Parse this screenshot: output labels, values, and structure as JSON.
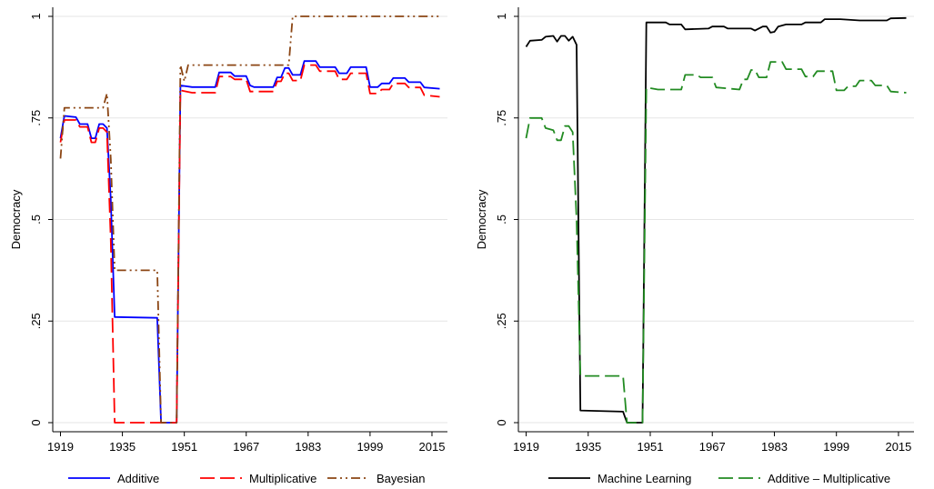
{
  "chart_data": [
    {
      "type": "line",
      "ylabel": "Democracy",
      "xlim": [
        1917,
        2019
      ],
      "ylim": [
        0,
        1
      ],
      "xticks": [
        "1919",
        "1935",
        "1951",
        "1967",
        "1983",
        "1999",
        "2015"
      ],
      "yticks": [
        "0",
        ".25",
        ".5",
        ".75",
        "1"
      ],
      "grid": true,
      "legend_position": "bottom",
      "series": [
        {
          "name": "Additive",
          "color": "#0000ff",
          "dash": "solid",
          "points": [
            [
              1919,
              0.7
            ],
            [
              1920,
              0.755
            ],
            [
              1923,
              0.752
            ],
            [
              1924,
              0.735
            ],
            [
              1926,
              0.735
            ],
            [
              1927,
              0.7
            ],
            [
              1928,
              0.7
            ],
            [
              1929,
              0.735
            ],
            [
              1930,
              0.735
            ],
            [
              1931,
              0.725
            ],
            [
              1932,
              0.55
            ],
            [
              1933,
              0.26
            ],
            [
              1944,
              0.258
            ],
            [
              1945,
              0.0
            ],
            [
              1949,
              0.0
            ],
            [
              1950,
              0.83
            ],
            [
              1953,
              0.826
            ],
            [
              1959,
              0.826
            ],
            [
              1960,
              0.862
            ],
            [
              1963,
              0.862
            ],
            [
              1964,
              0.853
            ],
            [
              1967,
              0.853
            ],
            [
              1968,
              0.83
            ],
            [
              1969,
              0.826
            ],
            [
              1974,
              0.826
            ],
            [
              1975,
              0.85
            ],
            [
              1976,
              0.85
            ],
            [
              1977,
              0.873
            ],
            [
              1978,
              0.873
            ],
            [
              1979,
              0.856
            ],
            [
              1981,
              0.856
            ],
            [
              1982,
              0.89
            ],
            [
              1985,
              0.89
            ],
            [
              1986,
              0.875
            ],
            [
              1990,
              0.875
            ],
            [
              1991,
              0.86
            ],
            [
              1993,
              0.86
            ],
            [
              1994,
              0.875
            ],
            [
              1998,
              0.875
            ],
            [
              1999,
              0.826
            ],
            [
              2001,
              0.826
            ],
            [
              2002,
              0.835
            ],
            [
              2004,
              0.835
            ],
            [
              2005,
              0.848
            ],
            [
              2008,
              0.848
            ],
            [
              2009,
              0.838
            ],
            [
              2012,
              0.838
            ],
            [
              2013,
              0.825
            ],
            [
              2017,
              0.822
            ]
          ]
        },
        {
          "name": "Multiplicative",
          "color": "#ff0000",
          "dash": "long-dash",
          "points": [
            [
              1919,
              0.69
            ],
            [
              1920,
              0.745
            ],
            [
              1923,
              0.745
            ],
            [
              1924,
              0.728
            ],
            [
              1926,
              0.728
            ],
            [
              1927,
              0.69
            ],
            [
              1928,
              0.69
            ],
            [
              1929,
              0.725
            ],
            [
              1930,
              0.725
            ],
            [
              1931,
              0.715
            ],
            [
              1932,
              0.45
            ],
            [
              1933,
              0.0
            ],
            [
              1944,
              0.0
            ],
            [
              1949,
              0.0
            ],
            [
              1950,
              0.818
            ],
            [
              1953,
              0.812
            ],
            [
              1959,
              0.812
            ],
            [
              1960,
              0.852
            ],
            [
              1963,
              0.852
            ],
            [
              1964,
              0.845
            ],
            [
              1967,
              0.845
            ],
            [
              1968,
              0.815
            ],
            [
              1974,
              0.815
            ],
            [
              1975,
              0.84
            ],
            [
              1976,
              0.84
            ],
            [
              1977,
              0.86
            ],
            [
              1978,
              0.86
            ],
            [
              1979,
              0.842
            ],
            [
              1981,
              0.842
            ],
            [
              1982,
              0.88
            ],
            [
              1985,
              0.88
            ],
            [
              1986,
              0.865
            ],
            [
              1990,
              0.865
            ],
            [
              1991,
              0.845
            ],
            [
              1993,
              0.845
            ],
            [
              1994,
              0.86
            ],
            [
              1998,
              0.86
            ],
            [
              1999,
              0.81
            ],
            [
              2001,
              0.81
            ],
            [
              2002,
              0.82
            ],
            [
              2004,
              0.82
            ],
            [
              2005,
              0.835
            ],
            [
              2008,
              0.835
            ],
            [
              2009,
              0.825
            ],
            [
              2012,
              0.825
            ],
            [
              2013,
              0.806
            ],
            [
              2017,
              0.802
            ]
          ]
        },
        {
          "name": "Bayesian",
          "color": "#8b4513",
          "dash": "dash-dot-dot",
          "points": [
            [
              1919,
              0.65
            ],
            [
              1920,
              0.775
            ],
            [
              1930,
              0.775
            ],
            [
              1931,
              0.81
            ],
            [
              1932,
              0.65
            ],
            [
              1933,
              0.375
            ],
            [
              1944,
              0.375
            ],
            [
              1945,
              0.0
            ],
            [
              1949,
              0.0
            ],
            [
              1950,
              0.88
            ],
            [
              1951,
              0.84
            ],
            [
              1952,
              0.88
            ],
            [
              1978,
              0.88
            ],
            [
              1979,
              1.0
            ],
            [
              2017,
              1.0
            ]
          ]
        }
      ]
    },
    {
      "type": "line",
      "ylabel": "Democracy",
      "xlim": [
        1917,
        2019
      ],
      "ylim": [
        0,
        1
      ],
      "xticks": [
        "1919",
        "1935",
        "1951",
        "1967",
        "1983",
        "1999",
        "2015"
      ],
      "yticks": [
        "0",
        ".25",
        ".5",
        ".75",
        "1"
      ],
      "grid": true,
      "legend_position": "bottom",
      "series": [
        {
          "name": "Machine Learning",
          "color": "#000000",
          "dash": "solid",
          "points": [
            [
              1919,
              0.925
            ],
            [
              1920,
              0.94
            ],
            [
              1923,
              0.942
            ],
            [
              1924,
              0.95
            ],
            [
              1926,
              0.952
            ],
            [
              1927,
              0.938
            ],
            [
              1928,
              0.952
            ],
            [
              1929,
              0.952
            ],
            [
              1930,
              0.94
            ],
            [
              1931,
              0.95
            ],
            [
              1932,
              0.93
            ],
            [
              1933,
              0.03
            ],
            [
              1944,
              0.027
            ],
            [
              1945,
              0.0
            ],
            [
              1949,
              0.0
            ],
            [
              1950,
              0.985
            ],
            [
              1955,
              0.985
            ],
            [
              1956,
              0.98
            ],
            [
              1959,
              0.98
            ],
            [
              1960,
              0.968
            ],
            [
              1966,
              0.97
            ],
            [
              1967,
              0.975
            ],
            [
              1970,
              0.975
            ],
            [
              1971,
              0.97
            ],
            [
              1977,
              0.97
            ],
            [
              1978,
              0.965
            ],
            [
              1980,
              0.975
            ],
            [
              1981,
              0.975
            ],
            [
              1982,
              0.96
            ],
            [
              1983,
              0.962
            ],
            [
              1984,
              0.975
            ],
            [
              1986,
              0.98
            ],
            [
              1990,
              0.98
            ],
            [
              1991,
              0.985
            ],
            [
              1995,
              0.985
            ],
            [
              1996,
              0.993
            ],
            [
              2000,
              0.993
            ],
            [
              2005,
              0.99
            ],
            [
              2012,
              0.99
            ],
            [
              2013,
              0.995
            ],
            [
              2017,
              0.996
            ]
          ]
        },
        {
          "name": "Additive – Multiplicative",
          "color": "#228b22",
          "dash": "long-dash",
          "points": [
            [
              1919,
              0.7
            ],
            [
              1920,
              0.75
            ],
            [
              1923,
              0.75
            ],
            [
              1924,
              0.725
            ],
            [
              1926,
              0.72
            ],
            [
              1927,
              0.695
            ],
            [
              1928,
              0.695
            ],
            [
              1929,
              0.73
            ],
            [
              1930,
              0.73
            ],
            [
              1931,
              0.715
            ],
            [
              1932,
              0.5
            ],
            [
              1933,
              0.115
            ],
            [
              1944,
              0.115
            ],
            [
              1945,
              0.0
            ],
            [
              1949,
              0.0
            ],
            [
              1950,
              0.825
            ],
            [
              1953,
              0.82
            ],
            [
              1959,
              0.82
            ],
            [
              1960,
              0.856
            ],
            [
              1963,
              0.856
            ],
            [
              1964,
              0.85
            ],
            [
              1967,
              0.85
            ],
            [
              1968,
              0.825
            ],
            [
              1974,
              0.82
            ],
            [
              1975,
              0.845
            ],
            [
              1976,
              0.845
            ],
            [
              1977,
              0.868
            ],
            [
              1978,
              0.868
            ],
            [
              1979,
              0.85
            ],
            [
              1981,
              0.85
            ],
            [
              1982,
              0.888
            ],
            [
              1985,
              0.888
            ],
            [
              1986,
              0.87
            ],
            [
              1990,
              0.87
            ],
            [
              1991,
              0.852
            ],
            [
              1993,
              0.852
            ],
            [
              1994,
              0.865
            ],
            [
              1998,
              0.865
            ],
            [
              1999,
              0.818
            ],
            [
              2001,
              0.818
            ],
            [
              2002,
              0.828
            ],
            [
              2004,
              0.828
            ],
            [
              2005,
              0.842
            ],
            [
              2008,
              0.842
            ],
            [
              2009,
              0.83
            ],
            [
              2012,
              0.83
            ],
            [
              2013,
              0.815
            ],
            [
              2017,
              0.812
            ]
          ]
        }
      ]
    }
  ]
}
